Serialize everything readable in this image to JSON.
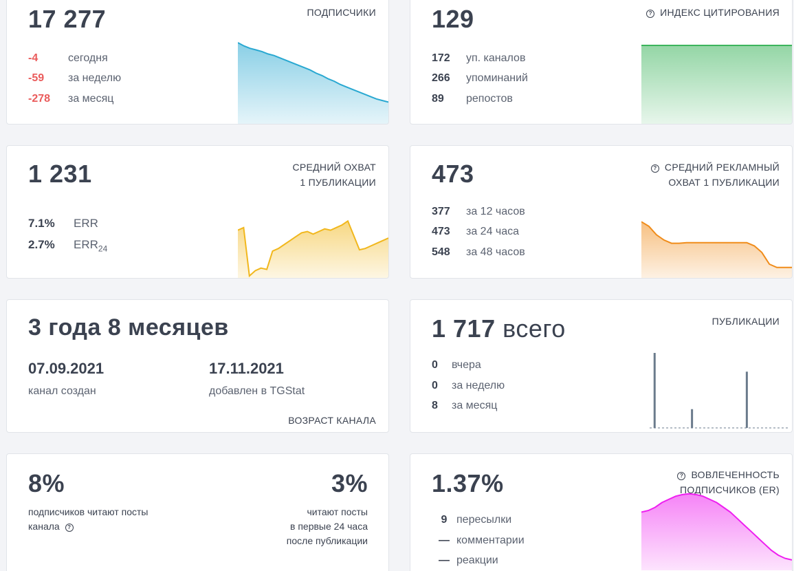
{
  "subscribers": {
    "value": "17 277",
    "title": "ПОДПИСЧИКИ",
    "rows": [
      {
        "value": "-4",
        "label": "сегодня"
      },
      {
        "value": "-59",
        "label": "за неделю"
      },
      {
        "value": "-278",
        "label": "за месяц"
      }
    ]
  },
  "citation": {
    "value": "129",
    "title": "ИНДЕКС ЦИТИРОВАНИЯ",
    "rows": [
      {
        "value": "172",
        "label": "уп. каналов"
      },
      {
        "value": "266",
        "label": "упоминаний"
      },
      {
        "value": "89",
        "label": "репостов"
      }
    ]
  },
  "avg_reach": {
    "value": "1 231",
    "title_line1": "СРЕДНИЙ ОХВАТ",
    "title_line2": "1 ПУБЛИКАЦИИ",
    "rows": [
      {
        "value": "7.1%",
        "label": "ERR",
        "sub": ""
      },
      {
        "value": "2.7%",
        "label": "ERR",
        "sub": "24"
      }
    ]
  },
  "ad_reach": {
    "value": "473",
    "title_line1": "СРЕДНИЙ РЕКЛАМНЫЙ",
    "title_line2": "ОХВАТ 1 ПУБЛИКАЦИИ",
    "rows": [
      {
        "value": "377",
        "label": "за 12 часов"
      },
      {
        "value": "473",
        "label": "за 24 часа"
      },
      {
        "value": "548",
        "label": "за 48 часов"
      }
    ]
  },
  "age": {
    "value": "3 года 8 месяцев",
    "created_date": "07.09.2021",
    "created_label": "канал создан",
    "added_date": "17.11.2021",
    "added_label": "добавлен в TGStat",
    "title": "ВОЗРАСТ КАНАЛА"
  },
  "publications": {
    "value": "1 717",
    "suffix": "всего",
    "title": "ПУБЛИКАЦИИ",
    "rows": [
      {
        "value": "0",
        "label": "вчера"
      },
      {
        "value": "0",
        "label": "за неделю"
      },
      {
        "value": "8",
        "label": "за месяц"
      }
    ]
  },
  "readers": {
    "left_value": "8%",
    "left_text_line1": "подписчиков читают посты",
    "left_text_line2": "канала",
    "right_value": "3%",
    "right_text_line1": "читают посты",
    "right_text_line2": "в первые 24 часа",
    "right_text_line3": "после публикации"
  },
  "engagement": {
    "value": "1.37%",
    "title_line1": "ВОВЛЕЧЕННОСТЬ",
    "title_line2": "ПОДПИСЧИКОВ (ER)",
    "rows": [
      {
        "value": "9",
        "label": "пересылки"
      },
      {
        "value": "—",
        "label": "комментарии"
      },
      {
        "value": "—",
        "label": "реакции"
      }
    ]
  },
  "charts": {
    "subscribers": {
      "type": "area",
      "values": [
        100,
        96,
        93,
        91,
        89,
        86,
        84,
        81,
        78,
        75,
        72,
        69,
        66,
        62,
        59,
        55,
        52,
        48,
        45,
        42,
        39,
        36,
        33,
        30,
        28,
        26
      ],
      "color": "#29a8d1"
    },
    "citation": {
      "type": "area",
      "values": [
        100,
        100,
        100,
        100,
        100,
        100,
        100,
        100,
        100,
        100
      ],
      "color": "#3cb45c"
    },
    "avg_reach": {
      "type": "area",
      "values": [
        72,
        76,
        2,
        10,
        14,
        12,
        40,
        44,
        50,
        56,
        62,
        68,
        70,
        66,
        70,
        74,
        72,
        76,
        80,
        86,
        64,
        42,
        44,
        48,
        52,
        56,
        60
      ],
      "color": "#f1b71c"
    },
    "ad_reach": {
      "type": "area",
      "values": [
        85,
        78,
        65,
        57,
        52,
        52,
        53,
        53,
        53,
        53,
        53,
        53,
        53,
        53,
        53,
        48,
        38,
        20,
        15,
        15,
        15
      ],
      "color": "#f08c1a"
    },
    "publications": {
      "type": "bar",
      "values": [
        0,
        0,
        1,
        0,
        0,
        0,
        0,
        0,
        0,
        0,
        0,
        0,
        0,
        0,
        0,
        0,
        0,
        0.25,
        0,
        0,
        0,
        0,
        0,
        0,
        0,
        0,
        0,
        0,
        0,
        0,
        0,
        0,
        0,
        0,
        0,
        0,
        0,
        0,
        0,
        0.75,
        0,
        0,
        0,
        0,
        0,
        0,
        0,
        0,
        0,
        0,
        0,
        0,
        0,
        0,
        0,
        0,
        0
      ],
      "color": "#6b7b8c"
    },
    "engagement": {
      "type": "area",
      "values": [
        72,
        74,
        78,
        84,
        88,
        92,
        94,
        95,
        94,
        92,
        88,
        84,
        78,
        72,
        64,
        56,
        48,
        40,
        32,
        24,
        18,
        14,
        12
      ],
      "color": "#ee1ff0"
    }
  }
}
